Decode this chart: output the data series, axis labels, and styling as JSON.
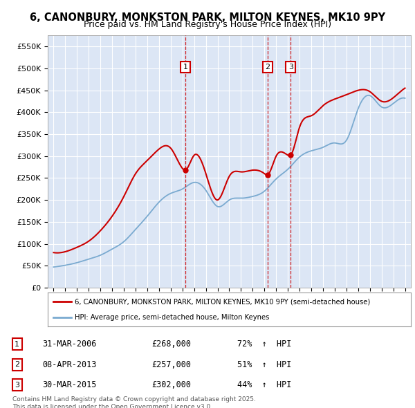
{
  "title": "6, CANONBURY, MONKSTON PARK, MILTON KEYNES, MK10 9PY",
  "subtitle": "Price paid vs. HM Land Registry's House Price Index (HPI)",
  "ylim": [
    0,
    575000
  ],
  "yticks": [
    0,
    50000,
    100000,
    150000,
    200000,
    250000,
    300000,
    350000,
    400000,
    450000,
    500000,
    550000
  ],
  "ytick_labels": [
    "£0",
    "£50K",
    "£100K",
    "£150K",
    "£200K",
    "£250K",
    "£300K",
    "£350K",
    "£400K",
    "£450K",
    "£500K",
    "£550K"
  ],
  "xlim_start": 1994.5,
  "xlim_end": 2025.5,
  "background_color": "#dce6f5",
  "red_line_color": "#cc0000",
  "blue_line_color": "#7aaad0",
  "grid_color": "#ffffff",
  "sale_line_color": "#cc0000",
  "sale_markers": [
    {
      "id": 1,
      "date": "31-MAR-2006",
      "year": 2006.25,
      "price": 268000,
      "hpi_pct": "72%",
      "label": "1"
    },
    {
      "id": 2,
      "date": "08-APR-2013",
      "year": 2013.27,
      "price": 257000,
      "hpi_pct": "51%",
      "label": "2"
    },
    {
      "id": 3,
      "date": "30-MAR-2015",
      "year": 2015.24,
      "price": 302000,
      "hpi_pct": "44%",
      "label": "3"
    }
  ],
  "legend_line1": "6, CANONBURY, MONKSTON PARK, MILTON KEYNES, MK10 9PY (semi-detached house)",
  "legend_line2": "HPI: Average price, semi-detached house, Milton Keynes",
  "footnote": "Contains HM Land Registry data © Crown copyright and database right 2025.\nThis data is licensed under the Open Government Licence v3.0.",
  "hpi_years": [
    1995,
    1996,
    1997,
    1998,
    1999,
    2000,
    2001,
    2002,
    2003,
    2004,
    2005,
    2006,
    2007,
    2008,
    2009,
    2010,
    2011,
    2012,
    2013,
    2014,
    2015,
    2016,
    2017,
    2018,
    2019,
    2020,
    2021,
    2022,
    2023,
    2024,
    2025
  ],
  "hpi_vals": [
    47000,
    51000,
    57000,
    65000,
    74000,
    88000,
    105000,
    133000,
    163000,
    195000,
    215000,
    225000,
    240000,
    222000,
    185000,
    200000,
    204000,
    208000,
    220000,
    248000,
    270000,
    298000,
    312000,
    320000,
    330000,
    336000,
    408000,
    438000,
    412000,
    420000,
    432000
  ],
  "prop_years": [
    1995,
    1996,
    1997,
    1998,
    1999,
    2000,
    2001,
    2002,
    2003,
    2004,
    2005,
    2006,
    2006.25,
    2007,
    2008,
    2009,
    2010,
    2011,
    2012,
    2013,
    2013.27,
    2014,
    2015,
    2015.24,
    2016,
    2017,
    2018,
    2019,
    2020,
    2021,
    2022,
    2023,
    2024,
    2025
  ],
  "prop_vals": [
    80000,
    82000,
    92000,
    106000,
    130000,
    163000,
    208000,
    260000,
    290000,
    316000,
    318000,
    272000,
    268000,
    302000,
    260000,
    200000,
    254000,
    264000,
    268000,
    260000,
    257000,
    300000,
    302000,
    302000,
    366000,
    392000,
    415000,
    430000,
    440000,
    450000,
    447000,
    425000,
    433000,
    455000
  ]
}
